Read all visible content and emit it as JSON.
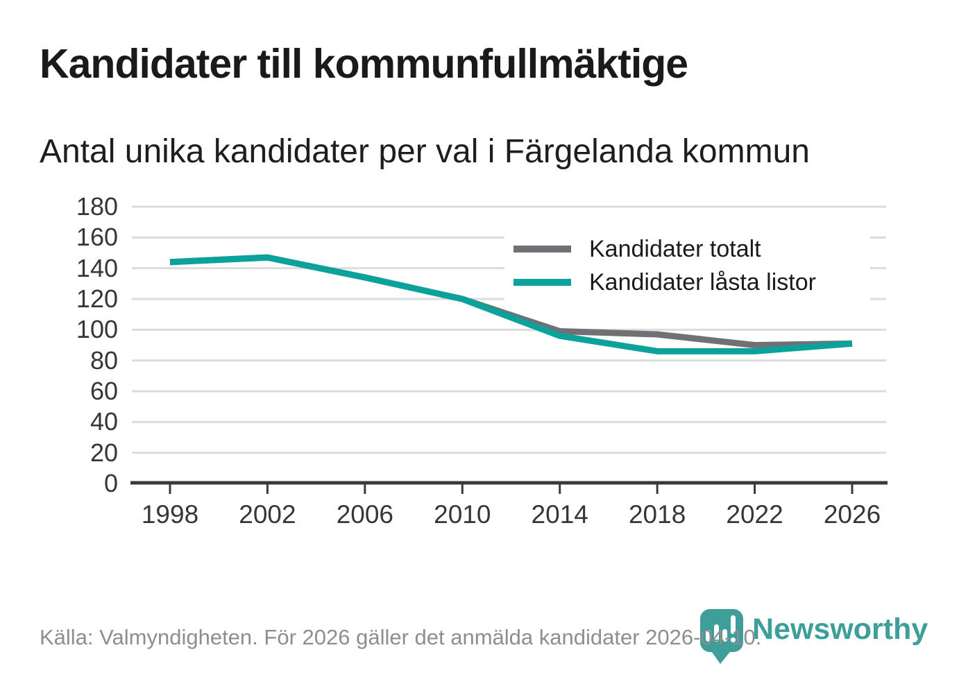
{
  "chart_data": {
    "type": "line",
    "title": "Kandidater till kommunfullmäktige",
    "subtitle": "Antal unika kandidater per val i Färgelanda kommun",
    "x": [
      1998,
      2002,
      2006,
      2010,
      2014,
      2018,
      2022,
      2026
    ],
    "series": [
      {
        "name": "Kandidater totalt",
        "color": "#717175",
        "values": [
          144,
          147,
          134,
          120,
          99,
          97,
          90,
          91
        ]
      },
      {
        "name": "Kandidater låsta listor",
        "color": "#0aa29a",
        "values": [
          144,
          147,
          134,
          120,
          96,
          86,
          86,
          91
        ]
      }
    ],
    "xlabel": "",
    "ylabel": "",
    "ylim": [
      0,
      180
    ],
    "ytick_step": 20,
    "grid": true,
    "legend_position": "top-right-inside"
  },
  "footer": {
    "source": "Källa: Valmyndigheten. För 2026 gäller det anmälda kandidater 2026-04-10."
  },
  "branding": {
    "logo_text": "Newsworthy",
    "logo_color": "#3e9e99"
  },
  "colors": {
    "grid": "#dcdcdc",
    "axis": "#3a3a3a",
    "tick_label": "#363636",
    "title_text": "#1a1a1a",
    "muted_text": "#8e8e8e"
  }
}
